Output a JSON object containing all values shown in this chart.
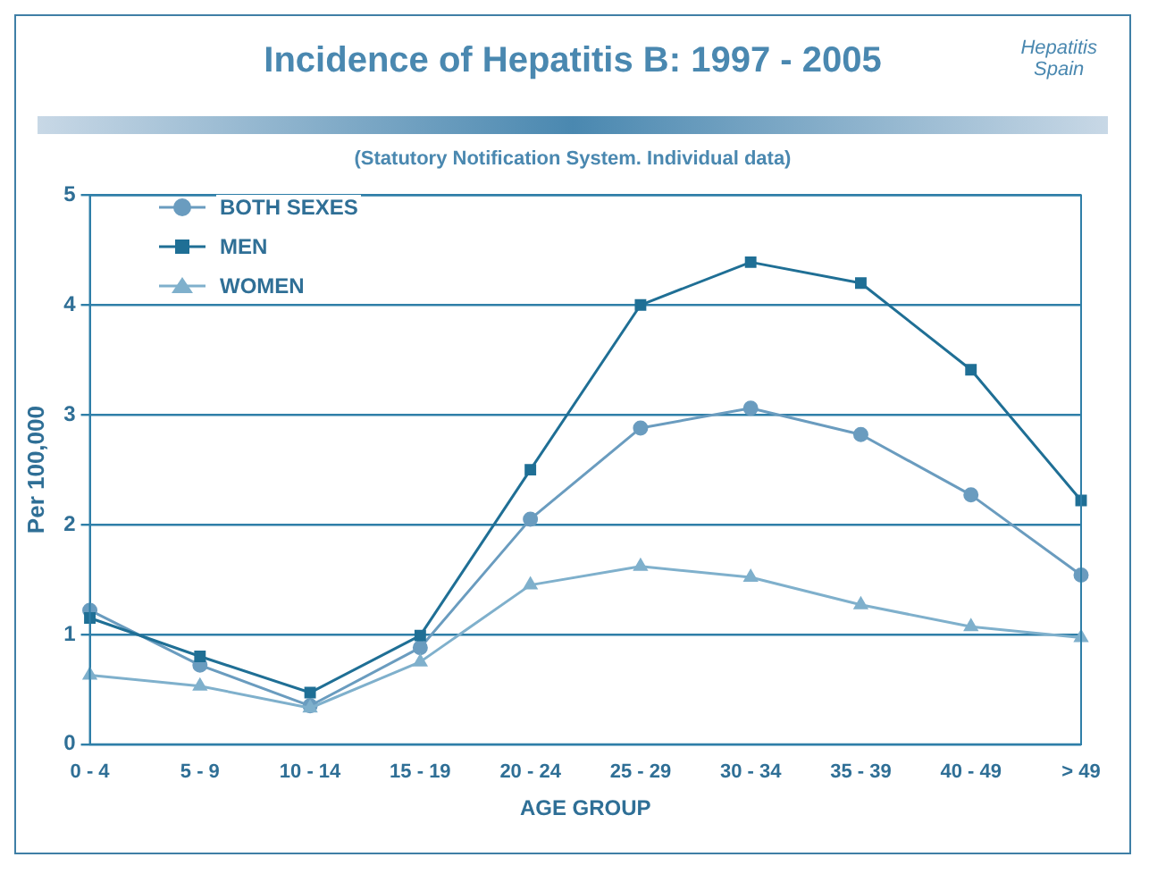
{
  "chart_data": {
    "type": "line",
    "title": "Incidence of Hepatitis B: 1997 - 2005",
    "subtitle": "(Statutory Notification System. Individual data)",
    "annotations": [
      "Hepatitis\nSpain"
    ],
    "xlabel": "AGE GROUP",
    "ylabel": "Per 100,000",
    "categories": [
      "0 - 4",
      "5 - 9",
      "10 - 14",
      "15 - 19",
      "20 - 24",
      "25 - 29",
      "30 - 34",
      "35 - 39",
      "40 - 49",
      "> 49"
    ],
    "series": [
      {
        "name": "BOTH SEXES",
        "color": "#6a9cbf",
        "marker": "circle",
        "values": [
          1.22,
          0.72,
          0.35,
          0.88,
          2.05,
          2.88,
          3.06,
          2.82,
          2.27,
          1.54
        ]
      },
      {
        "name": "MEN",
        "color": "#1f6f95",
        "marker": "square",
        "values": [
          1.15,
          0.8,
          0.47,
          0.99,
          2.5,
          4.0,
          4.39,
          4.2,
          3.41,
          2.22
        ]
      },
      {
        "name": "WOMEN",
        "color": "#7fb0cc",
        "marker": "triangle",
        "values": [
          0.63,
          0.53,
          0.33,
          0.75,
          1.45,
          1.62,
          1.52,
          1.27,
          1.07,
          0.97
        ]
      }
    ],
    "ylim": [
      0,
      5
    ],
    "yticks": [
      0,
      1,
      2,
      3,
      4,
      5
    ],
    "grid": "y",
    "legend": "top left"
  }
}
